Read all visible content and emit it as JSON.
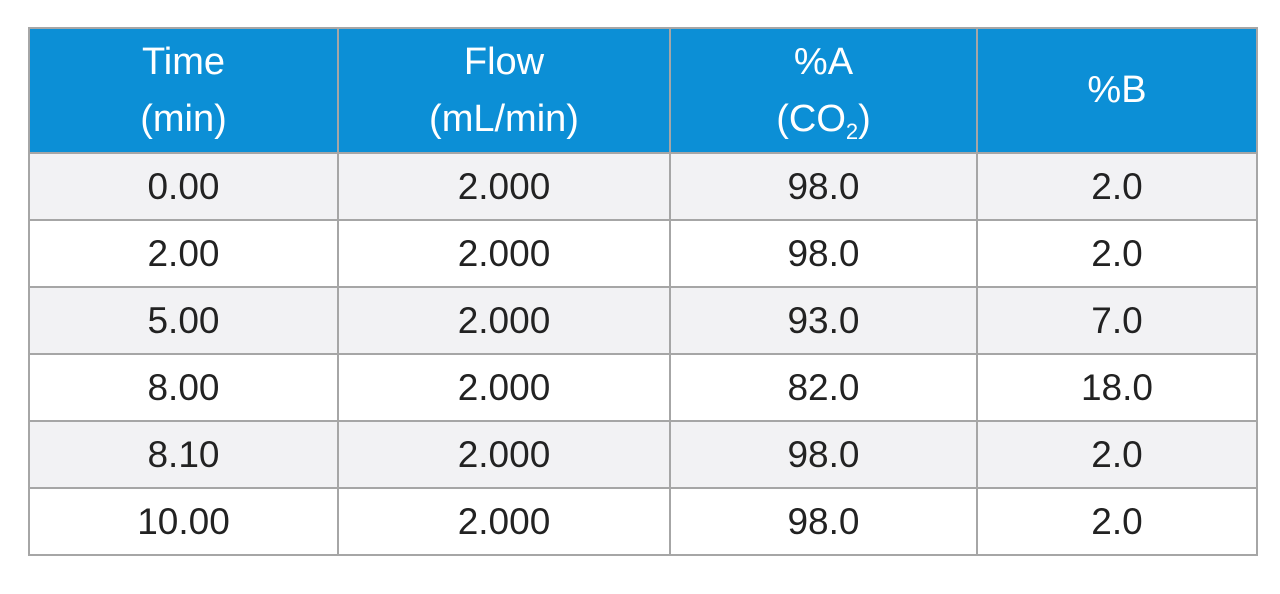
{
  "table": {
    "headers": {
      "time": {
        "line1": "Time",
        "line2": "(min)"
      },
      "flow": {
        "line1": "Flow",
        "line2": "(mL/min)"
      },
      "pct_a": {
        "line1": "%A",
        "line2_pre": "(CO",
        "line2_sub": "2",
        "line2_post": ")"
      },
      "pct_b": {
        "line1": "%B"
      }
    },
    "rows": [
      {
        "time": "0.00",
        "flow": "2.000",
        "a": "98.0",
        "b": "2.0"
      },
      {
        "time": "2.00",
        "flow": "2.000",
        "a": "98.0",
        "b": "2.0"
      },
      {
        "time": "5.00",
        "flow": "2.000",
        "a": "93.0",
        "b": "7.0"
      },
      {
        "time": "8.00",
        "flow": "2.000",
        "a": "82.0",
        "b": "18.0"
      },
      {
        "time": "8.10",
        "flow": "2.000",
        "a": "98.0",
        "b": "2.0"
      },
      {
        "time": "10.00",
        "flow": "2.000",
        "a": "98.0",
        "b": "2.0"
      }
    ],
    "colors": {
      "header_bg": "#0c8fd6",
      "header_text": "#ffffff",
      "border": "#a6a6a6",
      "row_alt_bg": "#f2f2f4"
    }
  }
}
